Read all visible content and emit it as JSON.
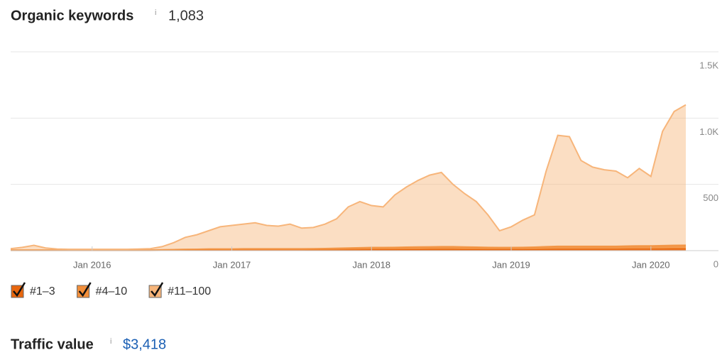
{
  "header": {
    "title": "Organic keywords",
    "info": "i",
    "value": "1,083"
  },
  "chart_data": {
    "type": "stacked-area",
    "x": [
      "2015-06",
      "2015-07",
      "2015-08",
      "2015-09",
      "2015-10",
      "2015-11",
      "2015-12",
      "2016-01",
      "2016-02",
      "2016-03",
      "2016-04",
      "2016-05",
      "2016-06",
      "2016-07",
      "2016-08",
      "2016-09",
      "2016-10",
      "2016-11",
      "2016-12",
      "2017-01",
      "2017-02",
      "2017-03",
      "2017-04",
      "2017-05",
      "2017-06",
      "2017-07",
      "2017-08",
      "2017-09",
      "2017-10",
      "2017-11",
      "2017-12",
      "2018-01",
      "2018-02",
      "2018-03",
      "2018-04",
      "2018-05",
      "2018-06",
      "2018-07",
      "2018-08",
      "2018-09",
      "2018-10",
      "2018-11",
      "2018-12",
      "2019-01",
      "2019-02",
      "2019-03",
      "2019-04",
      "2019-05",
      "2019-06",
      "2019-07",
      "2019-08",
      "2019-09",
      "2019-10",
      "2019-11",
      "2019-12",
      "2020-01",
      "2020-02",
      "2020-03",
      "2020-04"
    ],
    "xlim": [
      "2015-06",
      "2020-04"
    ],
    "xticks": [
      {
        "value": "2016-01",
        "label": "Jan 2016"
      },
      {
        "value": "2017-01",
        "label": "Jan 2017"
      },
      {
        "value": "2018-01",
        "label": "Jan 2018"
      },
      {
        "value": "2019-01",
        "label": "Jan 2019"
      },
      {
        "value": "2020-01",
        "label": "Jan 2020"
      }
    ],
    "ylim": [
      0,
      1500
    ],
    "yticks": [
      0,
      500,
      {
        "value": 1000,
        "label": "1.0K"
      },
      {
        "value": 1500,
        "label": "1.5K"
      }
    ],
    "grid": true,
    "series": [
      {
        "name": "#1–3",
        "color": "#e8660d",
        "values": [
          2,
          2,
          2,
          2,
          2,
          2,
          2,
          2,
          2,
          2,
          2,
          2,
          2,
          3,
          3,
          4,
          4,
          5,
          5,
          5,
          5,
          5,
          5,
          5,
          5,
          5,
          6,
          6,
          7,
          8,
          9,
          10,
          10,
          10,
          11,
          11,
          12,
          12,
          12,
          11,
          11,
          10,
          10,
          10,
          10,
          11,
          12,
          13,
          13,
          13,
          13,
          13,
          13,
          14,
          14,
          14,
          15,
          16,
          16
        ]
      },
      {
        "name": "#4–10",
        "color": "#f28f3b",
        "values": [
          3,
          3,
          3,
          3,
          3,
          3,
          3,
          3,
          3,
          3,
          3,
          3,
          3,
          4,
          5,
          6,
          7,
          8,
          8,
          8,
          9,
          9,
          9,
          9,
          9,
          9,
          9,
          10,
          11,
          12,
          13,
          14,
          14,
          15,
          16,
          17,
          17,
          18,
          18,
          17,
          16,
          15,
          14,
          14,
          15,
          16,
          18,
          20,
          20,
          20,
          20,
          20,
          20,
          21,
          22,
          22,
          23,
          24,
          25
        ]
      },
      {
        "name": "#11–100",
        "color": "#f7b57a",
        "values": [
          10,
          20,
          35,
          15,
          7,
          5,
          5,
          5,
          5,
          5,
          5,
          7,
          10,
          23,
          52,
          90,
          109,
          137,
          167,
          177,
          186,
          196,
          176,
          171,
          186,
          156,
          160,
          184,
          222,
          310,
          348,
          316,
          306,
          395,
          453,
          502,
          541,
          560,
          470,
          402,
          343,
          245,
          126,
          156,
          205,
          243,
          570,
          837,
          827,
          647,
          597,
          577,
          567,
          515,
          584,
          524,
          862,
          1010,
          1059
        ]
      }
    ]
  },
  "footer": {
    "title": "Traffic value",
    "info": "i",
    "value": "$3,418"
  }
}
